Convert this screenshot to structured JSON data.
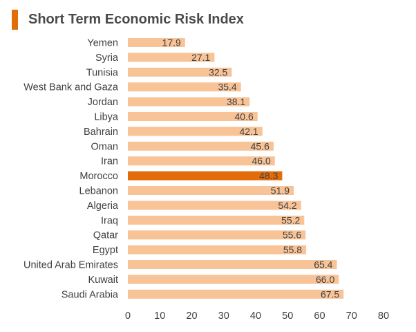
{
  "chart_data": {
    "type": "bar",
    "orientation": "horizontal",
    "title": "Short Term Economic Risk Index",
    "categories": [
      "Yemen",
      "Syria",
      "Tunisia",
      "West Bank and Gaza",
      "Jordan",
      "Libya",
      "Bahrain",
      "Oman",
      "Iran",
      "Morocco",
      "Lebanon",
      "Algeria",
      "Iraq",
      "Qatar",
      "Egypt",
      "United Arab Emirates",
      "Kuwait",
      "Saudi Arabia"
    ],
    "values": [
      17.9,
      27.1,
      32.5,
      35.4,
      38.1,
      40.6,
      42.1,
      45.6,
      46.0,
      48.3,
      51.9,
      54.2,
      55.2,
      55.6,
      55.8,
      65.4,
      66.0,
      67.5
    ],
    "value_labels": [
      "17.9",
      "27.1",
      "32.5",
      "35.4",
      "38.1",
      "40.6",
      "42.1",
      "45.6",
      "46.0",
      "48.3",
      "51.9",
      "54.2",
      "55.2",
      "55.6",
      "55.8",
      "65.4",
      "66.0",
      "67.5"
    ],
    "highlight": "Morocco",
    "xlim": [
      0,
      80
    ],
    "xticks": [
      "0",
      "10",
      "20",
      "30",
      "40",
      "50",
      "60",
      "70",
      "80"
    ],
    "grid": false,
    "legend": "none",
    "colors": {
      "bar": "#f8c397",
      "highlight": "#e36c0a",
      "accent": "#e36c0a",
      "text": "#404040"
    }
  }
}
